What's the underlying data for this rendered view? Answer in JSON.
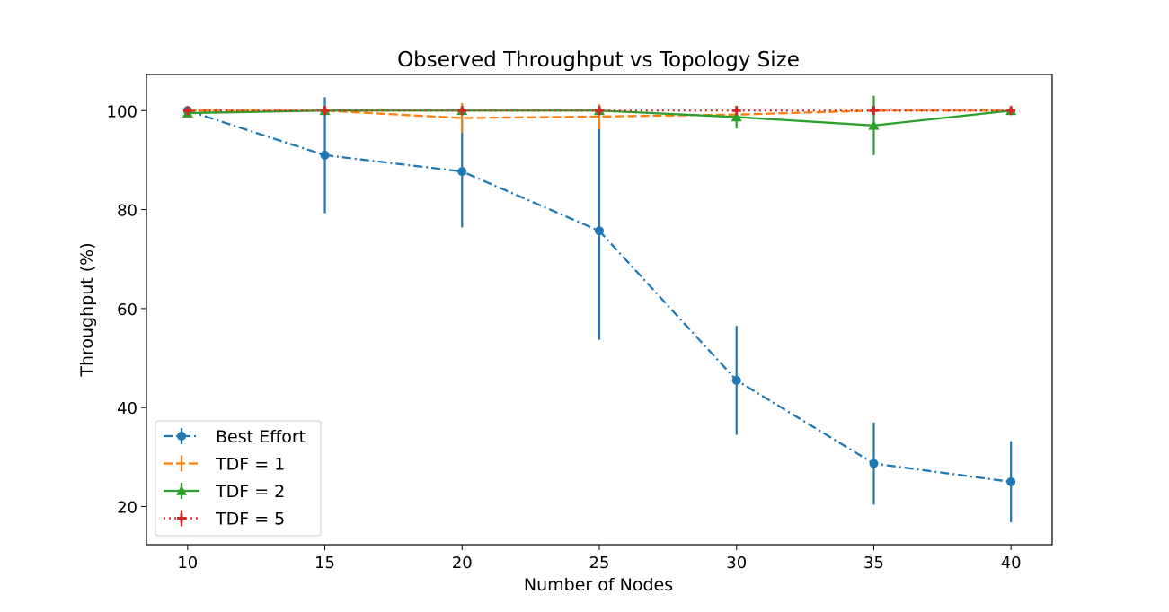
{
  "chart_data": {
    "type": "line",
    "title": "Observed Throughput vs Topology Size",
    "xlabel": "Number of Nodes",
    "ylabel": "Throughput (%)",
    "x": [
      10,
      15,
      20,
      25,
      30,
      35,
      40
    ],
    "xlim": [
      8.5,
      41.5
    ],
    "ylim": [
      12.3,
      107.3
    ],
    "xticks": [
      10,
      15,
      20,
      25,
      30,
      35,
      40
    ],
    "yticks": [
      20,
      40,
      60,
      80,
      100
    ],
    "grid": false,
    "legend_position": "lower-left",
    "series": [
      {
        "name": "Best Effort",
        "color": "#1f77b4",
        "linestyle": "dashdot",
        "marker": "circle",
        "values": [
          100.0,
          91.0,
          87.7,
          75.7,
          45.5,
          28.7,
          25.0
        ],
        "errors": [
          0.0,
          11.7,
          11.3,
          22.0,
          11.0,
          8.3,
          8.2
        ]
      },
      {
        "name": "TDF = 1",
        "color": "#ff7f0e",
        "linestyle": "dashed",
        "marker": "none",
        "values": [
          100.0,
          100.0,
          98.5,
          98.8,
          99.2,
          100.0,
          100.0
        ],
        "errors": [
          0.0,
          0.0,
          3.0,
          2.5,
          1.0,
          0.0,
          0.0
        ]
      },
      {
        "name": "TDF = 2",
        "color": "#2ca02c",
        "linestyle": "solid",
        "marker": "triangle-up",
        "values": [
          99.5,
          100.0,
          100.0,
          100.0,
          98.7,
          97.0,
          100.0
        ],
        "errors": [
          0.5,
          0.0,
          0.0,
          0.0,
          2.3,
          6.0,
          0.0
        ]
      },
      {
        "name": "TDF = 5",
        "color": "#d62728",
        "linestyle": "dotted",
        "marker": "plus",
        "values": [
          100.0,
          100.0,
          100.0,
          100.0,
          100.0,
          100.0,
          100.0
        ],
        "errors": [
          0.0,
          0.0,
          0.0,
          0.0,
          0.0,
          0.0,
          0.0
        ]
      }
    ]
  }
}
